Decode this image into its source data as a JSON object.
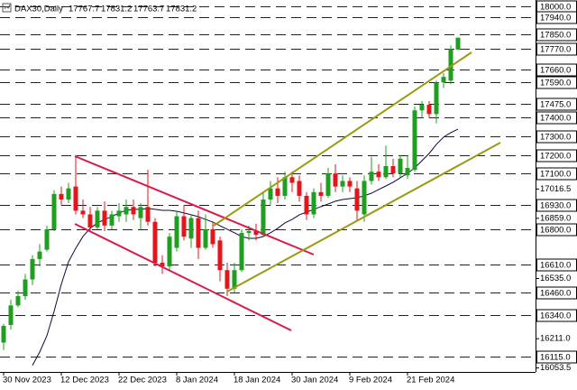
{
  "chart_data": {
    "type": "candlestick",
    "title": "DAX30,Daily",
    "categories": [
      "30 Nov 2023",
      null,
      null,
      null,
      null,
      null,
      null,
      null,
      "12 Dec 2023",
      null,
      null,
      null,
      null,
      null,
      null,
      null,
      "22 Dec 2023",
      null,
      null,
      null,
      null,
      null,
      null,
      null,
      "8 Jan 2024",
      null,
      null,
      null,
      null,
      null,
      null,
      null,
      "18 Jan 2024",
      null,
      null,
      null,
      null,
      null,
      null,
      null,
      "30 Jan 2024",
      null,
      null,
      null,
      null,
      null,
      null,
      null,
      "9 Feb 2024",
      null,
      null,
      null,
      null,
      null,
      null,
      null,
      "21 Feb 2024",
      null,
      null,
      null,
      null,
      null,
      null,
      null
    ],
    "open": [
      16190,
      16285,
      16390,
      16440,
      16530,
      16640,
      16690,
      16800,
      16990,
      16960,
      17030,
      16900,
      16880,
      16810,
      16900,
      16820,
      16870,
      16880,
      16920,
      16860,
      16920,
      16840,
      16620,
      16600,
      16700,
      16870,
      16750,
      16860,
      16700,
      16800,
      16740,
      16580,
      16480,
      16580,
      16780,
      16790,
      16770,
      16960,
      17020,
      16980,
      17080,
      17060,
      16980,
      16880,
      17000,
      16980,
      17100,
      17030,
      17060,
      17020,
      16880,
      17060,
      17110,
      17080,
      17140,
      17100,
      17090,
      17120,
      17440,
      17470,
      17420,
      17590,
      17600,
      17767.7
    ],
    "high": [
      16290,
      16420,
      16470,
      16560,
      16660,
      16720,
      16820,
      17010,
      17030,
      17050,
      17200,
      16960,
      16920,
      16920,
      16950,
      16900,
      16940,
      16960,
      16960,
      16940,
      17120,
      16860,
      16660,
      16780,
      16900,
      16930,
      16880,
      16900,
      16880,
      16840,
      16760,
      16620,
      16620,
      16800,
      16820,
      16830,
      17000,
      17060,
      17080,
      17110,
      17110,
      17090,
      17000,
      17020,
      17050,
      17130,
      17150,
      17090,
      17080,
      17060,
      17090,
      17190,
      17150,
      17250,
      17180,
      17200,
      17200,
      17460,
      17490,
      17490,
      17600,
      17640,
      17790,
      17831.2
    ],
    "low": [
      16150,
      16260,
      16380,
      16420,
      16500,
      16600,
      16680,
      16790,
      16930,
      16940,
      16880,
      16860,
      16790,
      16800,
      16790,
      16800,
      16840,
      16840,
      16850,
      16800,
      16820,
      16600,
      16560,
      16580,
      16680,
      16740,
      16700,
      16640,
      16690,
      16700,
      16520,
      16440,
      16460,
      16570,
      16740,
      16740,
      16760,
      16930,
      16940,
      16960,
      17000,
      16950,
      16850,
      16860,
      16950,
      16970,
      17000,
      17000,
      17000,
      16850,
      16840,
      17040,
      17060,
      17070,
      17080,
      17080,
      17070,
      17110,
      17400,
      17400,
      17370,
      17560,
      17580,
      17763.7
    ],
    "close": [
      16280,
      16390,
      16440,
      16530,
      16640,
      16680,
      16800,
      16990,
      16960,
      17020,
      16900,
      16880,
      16810,
      16900,
      16820,
      16880,
      16900,
      16920,
      16880,
      16920,
      16840,
      16620,
      16600,
      16760,
      16870,
      16760,
      16860,
      16700,
      16800,
      16720,
      16580,
      16480,
      16580,
      16780,
      16790,
      16770,
      16960,
      17020,
      16980,
      17080,
      17050,
      16980,
      16880,
      17000,
      16980,
      17100,
      17030,
      17060,
      17030,
      16900,
      17060,
      17110,
      17080,
      17140,
      17100,
      17180,
      17130,
      17440,
      17470,
      17420,
      17590,
      17620,
      17770,
      17831.2
    ],
    "up_color": "#1f9e1f",
    "down_color": "#e3141b",
    "moving_average": {
      "color": "#0a0a3c",
      "values": [
        null,
        null,
        null,
        null,
        16067,
        16139,
        16227,
        16358,
        16504,
        16625,
        16698,
        16761,
        16805,
        16834,
        16853,
        16868,
        16888,
        16902,
        16907,
        16907,
        16912,
        16907,
        16902,
        16902,
        16897,
        16888,
        16878,
        16868,
        16853,
        16839,
        16819,
        16800,
        16781,
        16761,
        16751,
        16751,
        16761,
        16781,
        16805,
        16834,
        16853,
        16878,
        16892,
        16907,
        16922,
        16936,
        16951,
        16960,
        16965,
        16970,
        16980,
        16994,
        17014,
        17033,
        17053,
        17077,
        17101,
        17130,
        17169,
        17208,
        17257,
        17296,
        17320,
        17339
      ]
    },
    "ylim": [
      16032,
      18034
    ],
    "yticks": [
      {
        "value": 17016.5,
        "label": "17016.5"
      },
      {
        "value": 16859,
        "label": "16859.0"
      },
      {
        "value": 16535,
        "label": "16535.0"
      },
      {
        "value": 16211,
        "label": "16211.0"
      },
      {
        "value": 16053.5,
        "label": "16053.5"
      }
    ],
    "levels": [
      {
        "value": 18000,
        "label": "18000.0"
      },
      {
        "value": 17940,
        "label": "17940.0"
      },
      {
        "value": 17850,
        "label": "17850.0"
      },
      {
        "value": 17770,
        "label": "17770.0"
      },
      {
        "value": 17660,
        "label": "17660.0"
      },
      {
        "value": 17590,
        "label": "17590.0"
      },
      {
        "value": 17475,
        "label": "17475.0"
      },
      {
        "value": 17400,
        "label": "17400.0"
      },
      {
        "value": 17300,
        "label": "17300.0"
      },
      {
        "value": 17200,
        "label": "17200.0"
      },
      {
        "value": 17100,
        "label": "17100.0"
      },
      {
        "value": 16930,
        "label": "16930.0"
      },
      {
        "value": 16800,
        "label": "16800.0"
      },
      {
        "value": 16610,
        "label": "16610.0"
      },
      {
        "value": 16460,
        "label": "16460.0"
      },
      {
        "value": 16340,
        "label": "16340.0"
      },
      {
        "value": 16115,
        "label": "16115.0"
      }
    ]
  }
}
